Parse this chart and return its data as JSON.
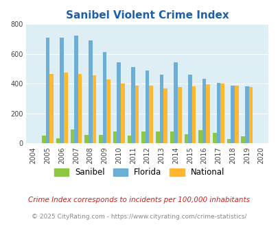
{
  "title": "Sanibel Violent Crime Index",
  "years": [
    "2004",
    "2005",
    "2006",
    "2007",
    "2008",
    "2009",
    "2010",
    "2011",
    "2012",
    "2013",
    "2014",
    "2015",
    "2016",
    "2017",
    "2018",
    "2019",
    "2020"
  ],
  "sanibel": [
    0,
    52,
    35,
    95,
    58,
    58,
    82,
    52,
    80,
    80,
    80,
    62,
    90,
    73,
    30,
    47,
    0
  ],
  "florida": [
    0,
    710,
    710,
    722,
    693,
    612,
    543,
    514,
    490,
    460,
    546,
    463,
    433,
    406,
    388,
    382,
    0
  ],
  "national": [
    0,
    467,
    474,
    467,
    455,
    430,
    403,
    390,
    390,
    368,
    379,
    383,
    399,
    401,
    389,
    381,
    0
  ],
  "color_sanibel": "#8dc63f",
  "color_florida": "#6baed6",
  "color_national": "#fdb731",
  "bg_color": "#deeef5",
  "ylim": [
    0,
    800
  ],
  "yticks": [
    0,
    200,
    400,
    600,
    800
  ],
  "subtitle": "Crime Index corresponds to incidents per 100,000 inhabitants",
  "footer": "© 2025 CityRating.com - https://www.cityrating.com/crime-statistics/",
  "title_color": "#1f5fa6",
  "subtitle_color": "#cc2222",
  "footer_color": "#888888",
  "bar_width": 0.27
}
